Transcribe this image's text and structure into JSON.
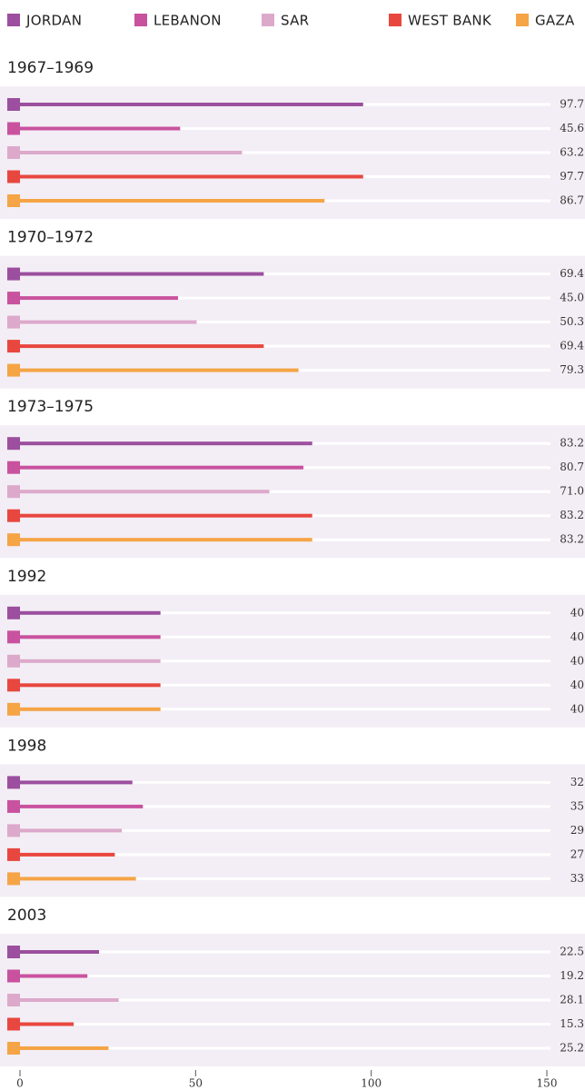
{
  "chart_data": {
    "type": "bar",
    "orientation": "horizontal",
    "categories": [
      "1967–1969",
      "1970–1972",
      "1973–1975",
      "1992",
      "1998",
      "2003"
    ],
    "series": [
      {
        "name": "JORDAN",
        "color": "#9b4f9e",
        "values": [
          97.7,
          69.4,
          83.2,
          40,
          32,
          22.5
        ],
        "value_labels": [
          "97.7",
          "69.4",
          "83.2",
          "40",
          "32",
          "22.5"
        ]
      },
      {
        "name": "LEBANON",
        "color": "#c9529f",
        "values": [
          45.6,
          45.0,
          80.7,
          40,
          35,
          19.2
        ],
        "value_labels": [
          "45.6",
          "45.0",
          "80.7",
          "40",
          "35",
          "19.2"
        ]
      },
      {
        "name": "SAR",
        "color": "#dca9cb",
        "values": [
          63.2,
          50.3,
          71.0,
          40,
          29,
          28.1
        ],
        "value_labels": [
          "63.2",
          "50.3",
          "71.0",
          "40",
          "29",
          "28.1"
        ]
      },
      {
        "name": "WEST BANK",
        "color": "#e8473f",
        "values": [
          97.7,
          69.4,
          83.2,
          40,
          27,
          15.3
        ],
        "value_labels": [
          "97.7",
          "69.4",
          "83.2",
          "40",
          "27",
          "15.3"
        ]
      },
      {
        "name": "GAZA",
        "color": "#f5a446",
        "values": [
          86.7,
          79.3,
          83.2,
          40,
          33,
          25.2
        ],
        "value_labels": [
          "86.7",
          "79.3",
          "83.2",
          "40",
          "33",
          "25.2"
        ]
      }
    ],
    "xlim": [
      0,
      150
    ],
    "xticks": [
      0,
      50,
      100,
      150
    ]
  }
}
